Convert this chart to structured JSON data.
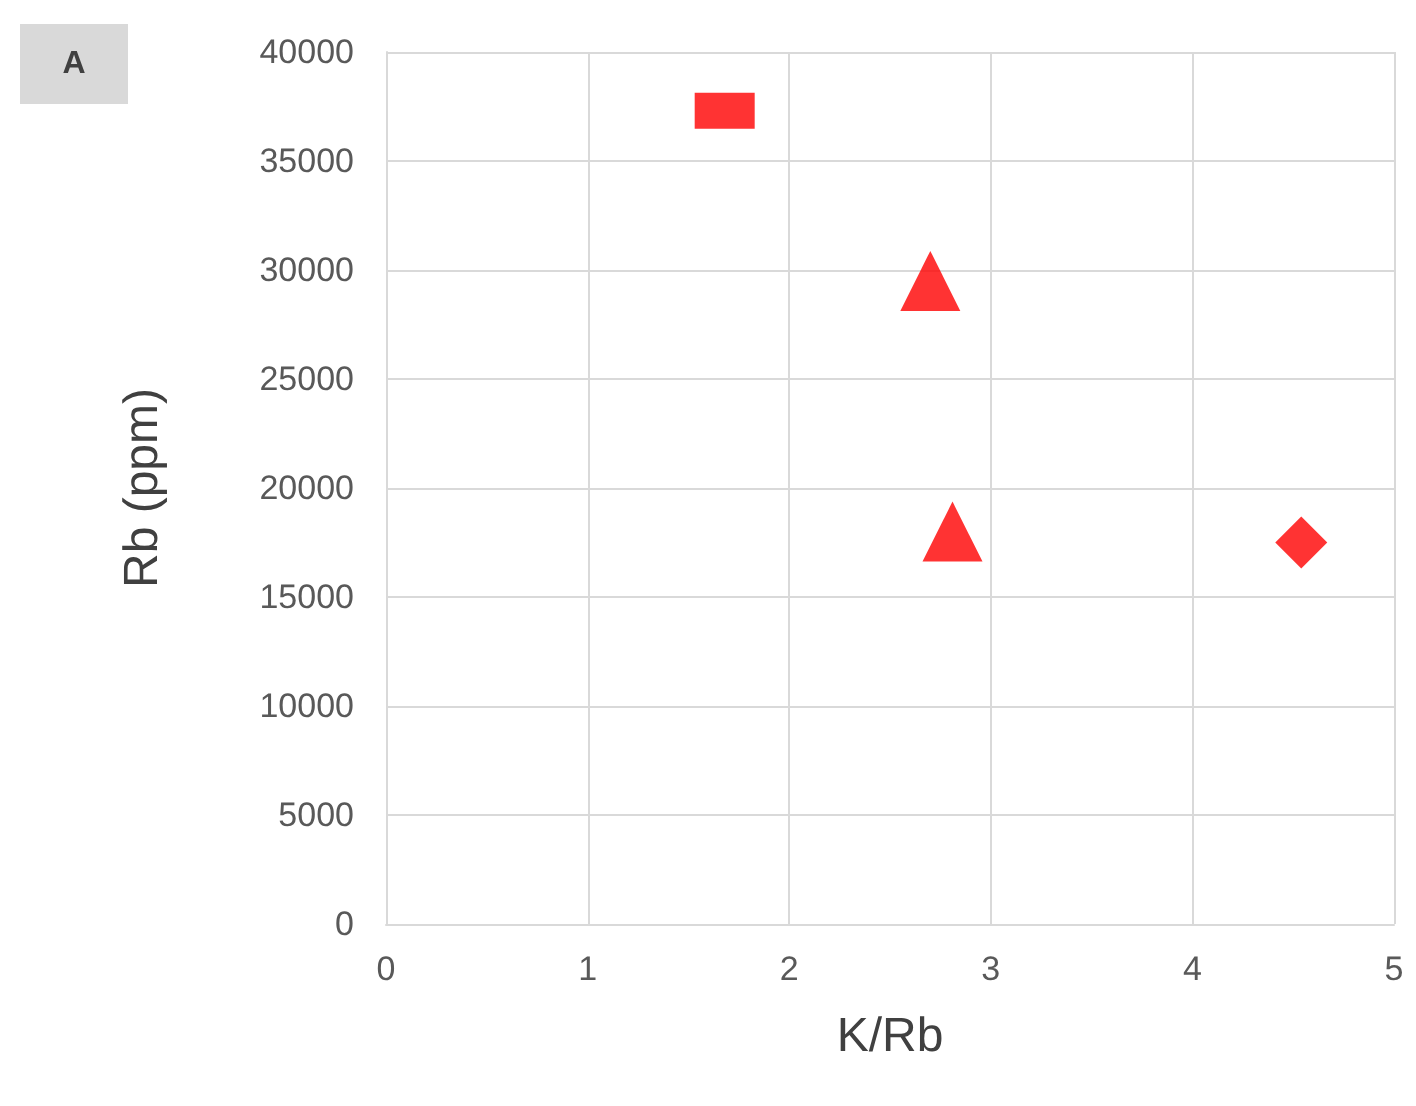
{
  "chart_data": {
    "type": "scatter",
    "xlabel": "K/Rb",
    "ylabel": "Rb (ppm)",
    "annotations": [
      "A"
    ],
    "series": [
      {
        "color": "#ff0000",
        "marker": "square",
        "x": [
          1.68
        ],
        "values": [
          37300
        ]
      },
      {
        "color": "#ff0000",
        "marker": "triangle",
        "x": [
          2.7
        ],
        "values": [
          29500
        ]
      },
      {
        "color": "#ff0000",
        "marker": "triangle",
        "x": [
          2.81
        ],
        "values": [
          18000
        ]
      },
      {
        "color": "#ff0000",
        "marker": "diamond",
        "x": [
          4.54
        ],
        "values": [
          17500
        ]
      }
    ],
    "xlim": [
      0,
      5
    ],
    "xticks": [
      0,
      1,
      2,
      3,
      4,
      5
    ],
    "ylim": [
      0,
      40000
    ],
    "yticks": [
      0,
      5000,
      10000,
      15000,
      20000,
      25000,
      30000,
      35000,
      40000
    ],
    "grid": true
  }
}
